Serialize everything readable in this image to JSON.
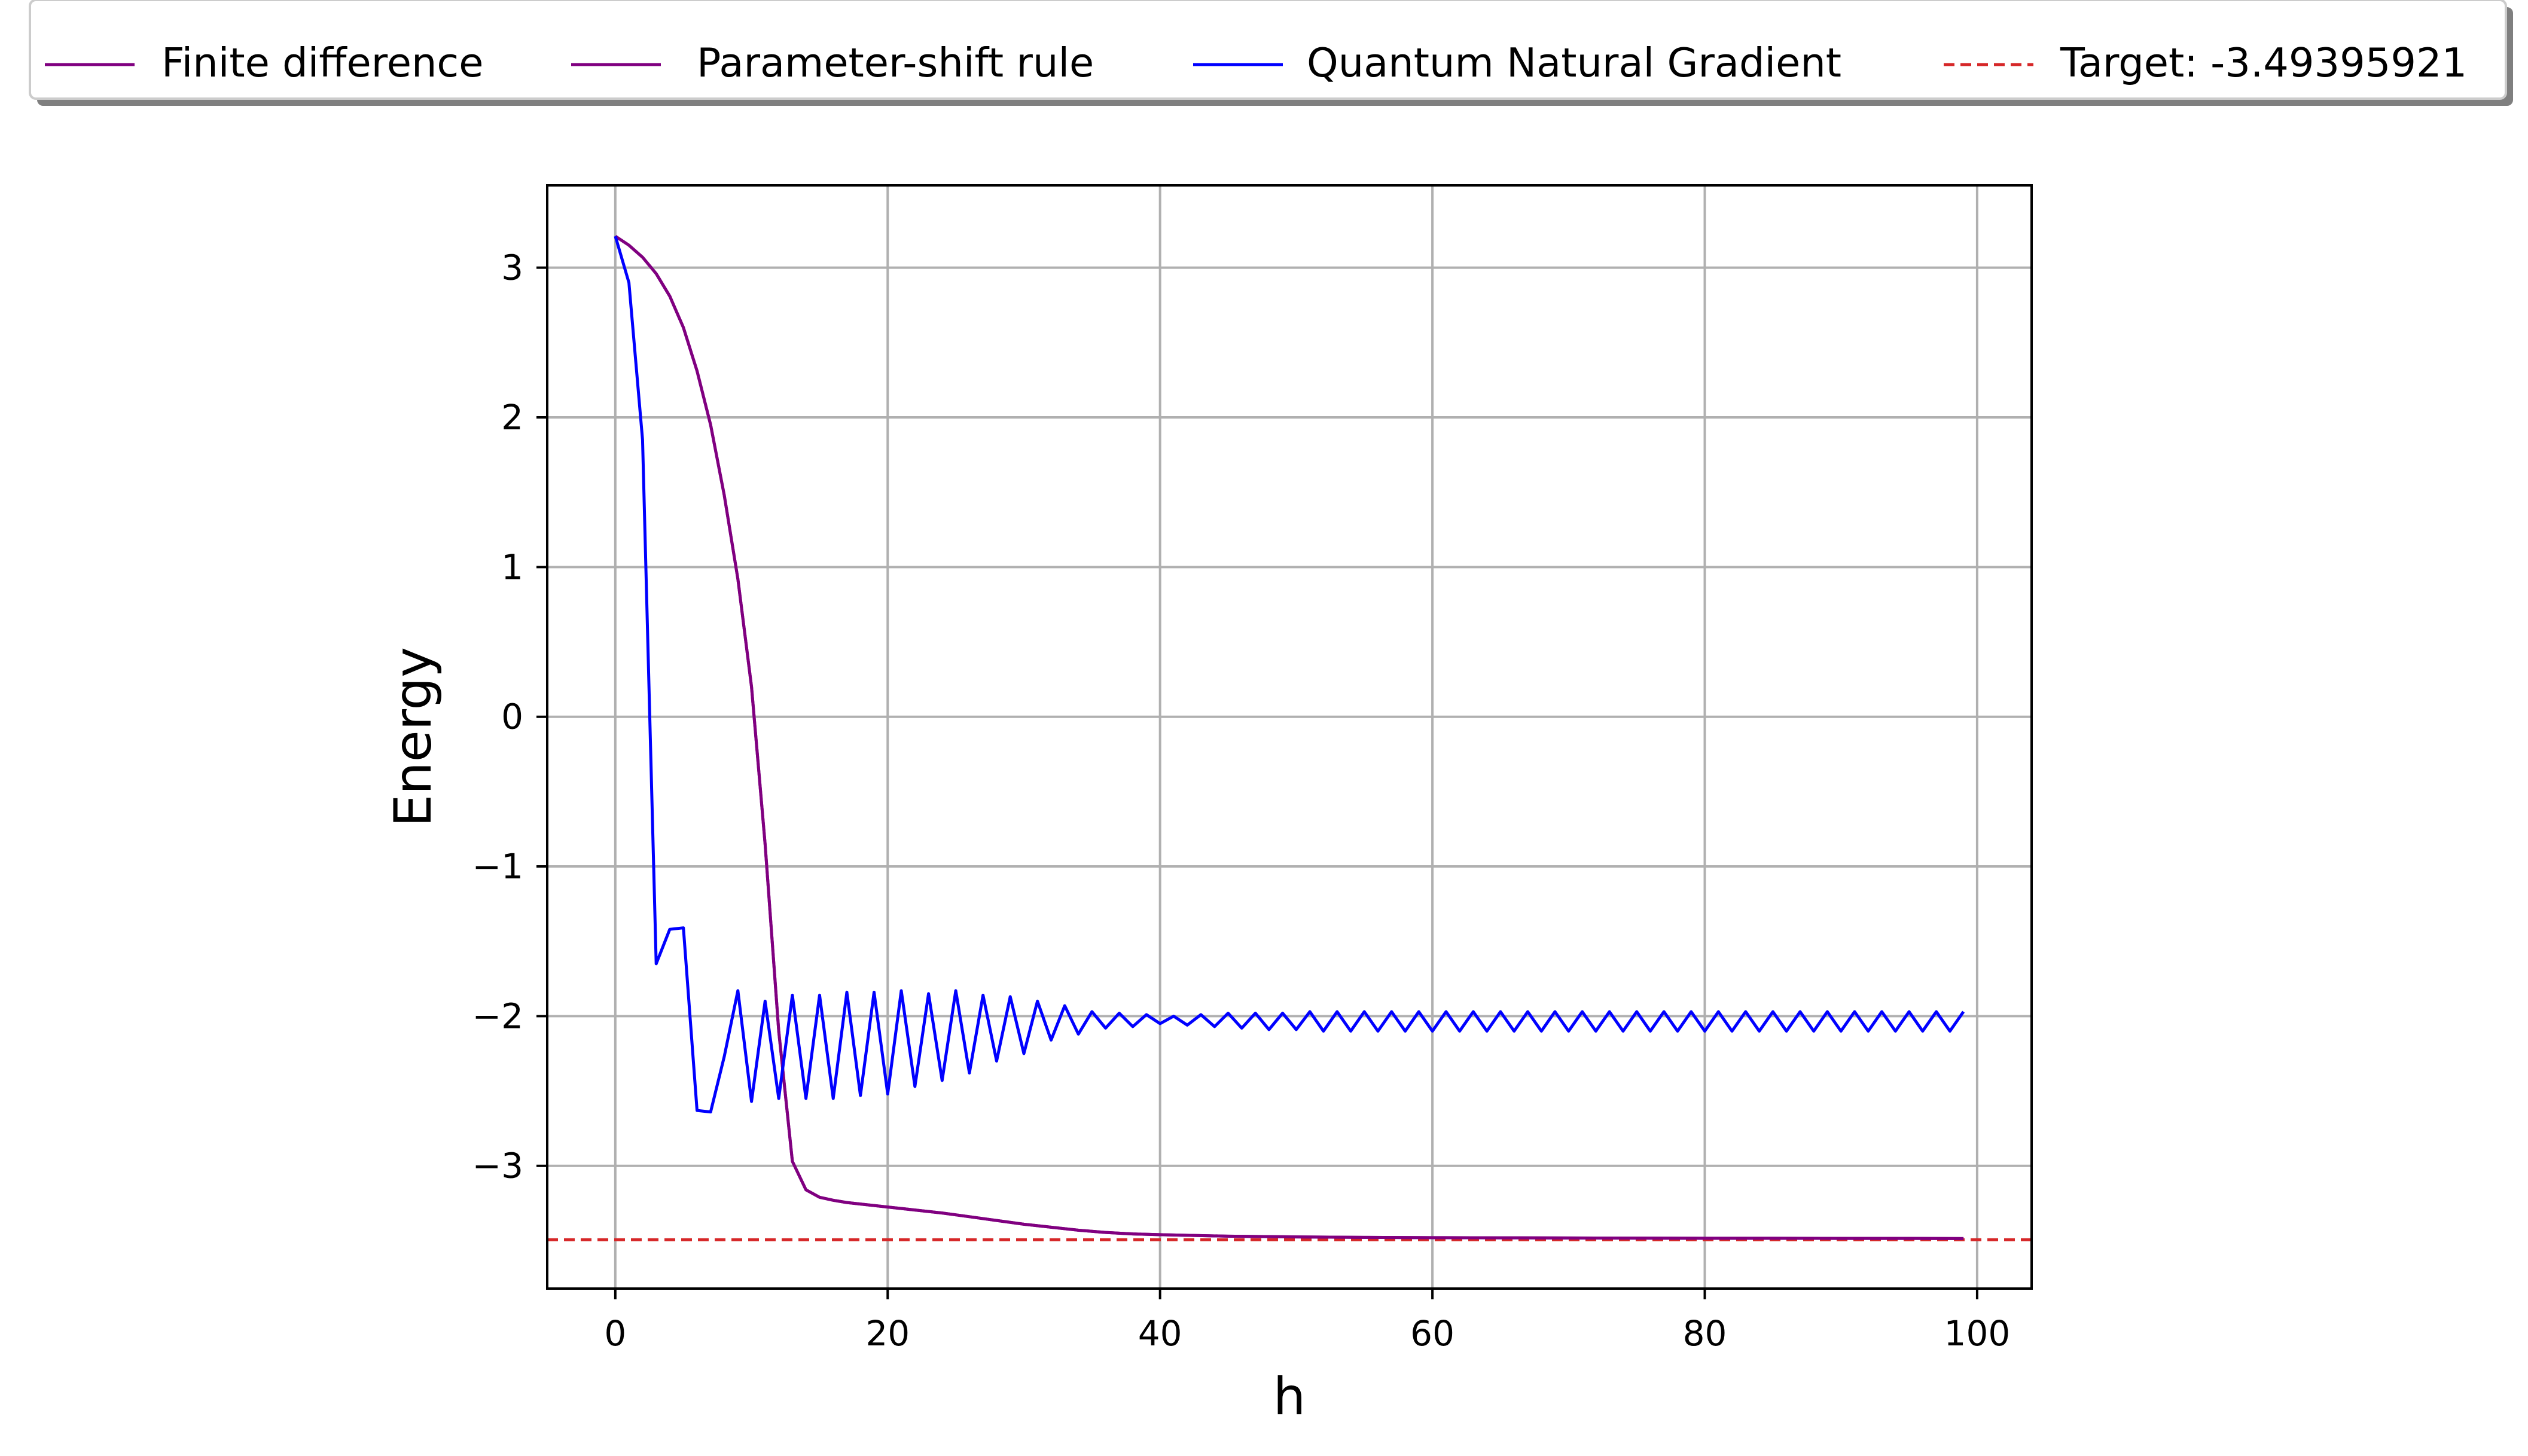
{
  "chart_data": {
    "type": "line",
    "xlabel": "h",
    "ylabel": "Energy",
    "xlim": [
      -5,
      104
    ],
    "ylim": [
      -3.82,
      3.55
    ],
    "x_ticks": [
      0,
      20,
      40,
      60,
      80,
      100
    ],
    "x_tick_labels": [
      "0",
      "20",
      "40",
      "60",
      "80",
      "100"
    ],
    "y_ticks": [
      3,
      2,
      1,
      0,
      -1,
      -2,
      -3
    ],
    "y_tick_labels": [
      "3",
      "2",
      "1",
      "0",
      "−1",
      "−2",
      "−3"
    ],
    "grid": true,
    "legend_position": "top, outside plot, single row",
    "target": {
      "label": "Target: -3.49395921",
      "value": -3.49395921,
      "color": "#d62728",
      "style": "dashed"
    },
    "series": [
      {
        "name": "Finite difference",
        "color": "#800080",
        "x": [
          0,
          1,
          2,
          3,
          4,
          5,
          6,
          7,
          8,
          9,
          10,
          11,
          12,
          13,
          14,
          15,
          16,
          17,
          18,
          19,
          20,
          22,
          24,
          26,
          28,
          30,
          32,
          34,
          36,
          38,
          40,
          45,
          50,
          55,
          60,
          65,
          70,
          75,
          80,
          85,
          90,
          95,
          99
        ],
        "values": [
          3.21,
          3.15,
          3.07,
          2.96,
          2.81,
          2.6,
          2.31,
          1.95,
          1.48,
          0.92,
          0.2,
          -0.85,
          -2.1,
          -2.97,
          -3.16,
          -3.21,
          -3.23,
          -3.245,
          -3.255,
          -3.265,
          -3.275,
          -3.295,
          -3.315,
          -3.34,
          -3.365,
          -3.39,
          -3.41,
          -3.43,
          -3.445,
          -3.455,
          -3.46,
          -3.47,
          -3.475,
          -3.478,
          -3.48,
          -3.481,
          -3.482,
          -3.483,
          -3.484,
          -3.484,
          -3.485,
          -3.485,
          -3.486
        ]
      },
      {
        "name": "Parameter-shift rule",
        "color": "#800080",
        "x": [
          0,
          1,
          2,
          3,
          4,
          5,
          6,
          7,
          8,
          9,
          10,
          11,
          12,
          13,
          14,
          15,
          16,
          17,
          18,
          19,
          20,
          22,
          24,
          26,
          28,
          30,
          32,
          34,
          36,
          38,
          40,
          45,
          50,
          55,
          60,
          65,
          70,
          75,
          80,
          85,
          90,
          95,
          99
        ],
        "values": [
          3.21,
          3.15,
          3.07,
          2.96,
          2.81,
          2.6,
          2.31,
          1.95,
          1.48,
          0.92,
          0.2,
          -0.85,
          -2.1,
          -2.97,
          -3.16,
          -3.21,
          -3.23,
          -3.245,
          -3.255,
          -3.265,
          -3.275,
          -3.295,
          -3.315,
          -3.34,
          -3.365,
          -3.39,
          -3.41,
          -3.43,
          -3.445,
          -3.455,
          -3.46,
          -3.47,
          -3.475,
          -3.478,
          -3.48,
          -3.481,
          -3.482,
          -3.483,
          -3.484,
          -3.484,
          -3.485,
          -3.485,
          -3.486
        ]
      },
      {
        "name": "Quantum Natural Gradient",
        "color": "#0000ff",
        "x": [
          0,
          1,
          2,
          3,
          4,
          5,
          6,
          7,
          8,
          9,
          10,
          11,
          12,
          13,
          14,
          15,
          16,
          17,
          18,
          19,
          20,
          21,
          22,
          23,
          24,
          25,
          26,
          27,
          28,
          29,
          30,
          31,
          32,
          33,
          34,
          35,
          36,
          37,
          38,
          39,
          40,
          41,
          42,
          43,
          44,
          45,
          46,
          47,
          48,
          49,
          50,
          51,
          52,
          53,
          54,
          55,
          56,
          57,
          58,
          59,
          60,
          61,
          62,
          63,
          64,
          65,
          66,
          67,
          68,
          69,
          70,
          71,
          72,
          73,
          74,
          75,
          76,
          77,
          78,
          79,
          80,
          81,
          82,
          83,
          84,
          85,
          86,
          87,
          88,
          89,
          90,
          91,
          92,
          93,
          94,
          95,
          96,
          97,
          98,
          99
        ],
        "values": [
          3.21,
          2.9,
          1.85,
          -1.65,
          -1.42,
          -1.41,
          -2.63,
          -2.64,
          -2.27,
          -1.83,
          -2.57,
          -1.9,
          -2.55,
          -1.86,
          -2.55,
          -1.86,
          -2.55,
          -1.84,
          -2.53,
          -1.84,
          -2.52,
          -1.83,
          -2.47,
          -1.85,
          -2.43,
          -1.83,
          -2.38,
          -1.86,
          -2.3,
          -1.87,
          -2.25,
          -1.9,
          -2.16,
          -1.93,
          -2.12,
          -1.97,
          -2.08,
          -1.98,
          -2.07,
          -1.99,
          -2.05,
          -2.0,
          -2.06,
          -1.99,
          -2.07,
          -1.98,
          -2.08,
          -1.98,
          -2.09,
          -1.98,
          -2.09,
          -1.97,
          -2.1,
          -1.97,
          -2.1,
          -1.97,
          -2.1,
          -1.97,
          -2.1,
          -1.97,
          -2.1,
          -1.97,
          -2.1,
          -1.97,
          -2.1,
          -1.97,
          -2.1,
          -1.97,
          -2.1,
          -1.97,
          -2.1,
          -1.97,
          -2.1,
          -1.97,
          -2.1,
          -1.97,
          -2.1,
          -1.97,
          -2.1,
          -1.97,
          -2.1,
          -1.97,
          -2.1,
          -1.97,
          -2.1,
          -1.97,
          -2.1,
          -1.97,
          -2.1,
          -1.97,
          -2.1,
          -1.97,
          -2.1,
          -1.97,
          -2.1,
          -1.97,
          -2.1,
          -1.97,
          -2.1,
          -1.97
        ]
      }
    ]
  }
}
